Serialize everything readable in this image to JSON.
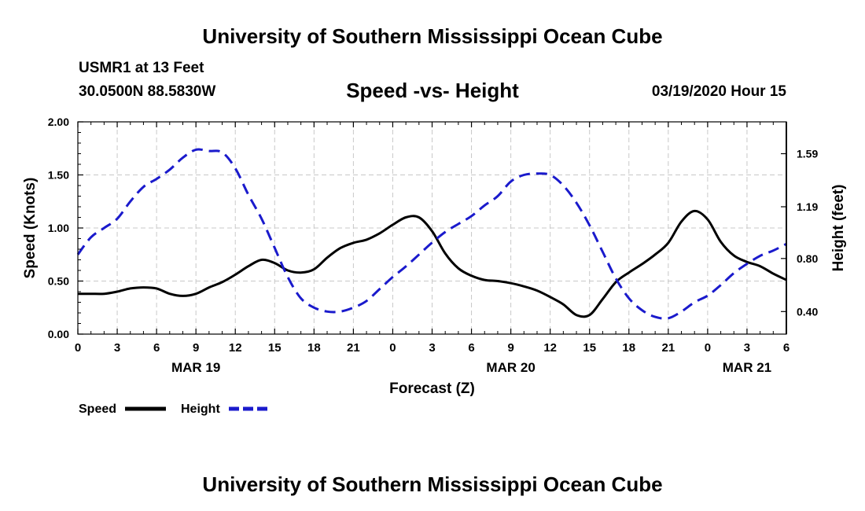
{
  "header": {
    "title": "University of Southern Mississippi Ocean Cube",
    "station": "USMR1 at 13 Feet",
    "coords": "30.0500N 88.5830W",
    "chart_title": "Speed -vs- Height",
    "datetime": "03/19/2020 Hour 15"
  },
  "footer": {
    "title": "University of Southern Mississippi Ocean Cube"
  },
  "legend": {
    "items": [
      {
        "label": "Speed",
        "color": "#000000",
        "dash": false
      },
      {
        "label": "Height",
        "color": "#1a1acc",
        "dash": true
      }
    ]
  },
  "chart_data": {
    "type": "line",
    "title": "Speed -vs- Height",
    "xlabel": "Forecast (Z)",
    "ylabel": "Speed (Knots)",
    "y2label": "Height (feet)",
    "xlim": [
      0,
      54
    ],
    "ylim": [
      0,
      2.0
    ],
    "y2lim": [
      0.23,
      1.83
    ],
    "x_ticks": [
      0,
      3,
      6,
      9,
      12,
      15,
      18,
      21,
      24,
      27,
      30,
      33,
      36,
      39,
      42,
      45,
      48,
      51,
      54
    ],
    "x_tick_labels": [
      "0",
      "3",
      "6",
      "9",
      "12",
      "15",
      "18",
      "21",
      "0",
      "3",
      "6",
      "9",
      "12",
      "15",
      "18",
      "21",
      "0",
      "3",
      "6"
    ],
    "date_labels": [
      {
        "x": 9,
        "label": "MAR 19"
      },
      {
        "x": 33,
        "label": "MAR 20"
      },
      {
        "x": 51,
        "label": "MAR 21"
      }
    ],
    "y_ticks": [
      0,
      0.5,
      1.0,
      1.5,
      2.0
    ],
    "y_tick_labels": [
      "0.00",
      "0.50",
      "1.00",
      "1.50",
      "2.00"
    ],
    "y2_ticks": [
      0.4,
      0.8,
      1.19,
      1.59
    ],
    "y2_tick_labels": [
      "0.40",
      "0.80",
      "1.19",
      "1.59"
    ],
    "grid": true,
    "series": [
      {
        "name": "Speed",
        "axis": "left",
        "color": "#000000",
        "x": [
          0,
          1,
          2,
          3,
          4,
          5,
          6,
          7,
          8,
          9,
          10,
          11,
          12,
          13,
          14,
          15,
          16,
          17,
          18,
          19,
          20,
          21,
          22,
          23,
          24,
          25,
          26,
          27,
          28,
          29,
          30,
          31,
          32,
          33,
          34,
          35,
          36,
          37,
          38,
          39,
          40,
          41,
          42,
          43,
          44,
          45,
          46,
          47,
          48,
          49,
          50,
          51,
          52,
          53,
          54
        ],
        "values": [
          0.38,
          0.38,
          0.38,
          0.4,
          0.43,
          0.44,
          0.43,
          0.38,
          0.36,
          0.38,
          0.44,
          0.49,
          0.56,
          0.64,
          0.7,
          0.67,
          0.6,
          0.58,
          0.61,
          0.72,
          0.81,
          0.86,
          0.89,
          0.95,
          1.03,
          1.1,
          1.1,
          0.97,
          0.76,
          0.62,
          0.55,
          0.51,
          0.5,
          0.48,
          0.45,
          0.41,
          0.35,
          0.28,
          0.18,
          0.18,
          0.33,
          0.49,
          0.58,
          0.66,
          0.75,
          0.86,
          1.06,
          1.16,
          1.08,
          0.87,
          0.74,
          0.68,
          0.64,
          0.57,
          0.51
        ]
      },
      {
        "name": "Height",
        "axis": "right",
        "color": "#1a1acc",
        "x": [
          0,
          1,
          2,
          3,
          4,
          5,
          6,
          7,
          8,
          9,
          10,
          11,
          12,
          13,
          14,
          15,
          16,
          17,
          18,
          19,
          20,
          21,
          22,
          23,
          24,
          25,
          26,
          27,
          28,
          29,
          30,
          31,
          32,
          33,
          34,
          35,
          36,
          37,
          38,
          39,
          40,
          41,
          42,
          43,
          44,
          45,
          46,
          47,
          48,
          49,
          50,
          51,
          52,
          53,
          54
        ],
        "values": [
          0.83,
          0.96,
          1.03,
          1.1,
          1.23,
          1.34,
          1.4,
          1.47,
          1.56,
          1.62,
          1.61,
          1.6,
          1.48,
          1.28,
          1.1,
          0.88,
          0.66,
          0.5,
          0.43,
          0.4,
          0.4,
          0.43,
          0.48,
          0.57,
          0.66,
          0.74,
          0.83,
          0.92,
          1.0,
          1.06,
          1.12,
          1.2,
          1.27,
          1.38,
          1.43,
          1.44,
          1.43,
          1.35,
          1.22,
          1.05,
          0.85,
          0.65,
          0.5,
          0.41,
          0.36,
          0.35,
          0.4,
          0.47,
          0.52,
          0.6,
          0.69,
          0.76,
          0.82,
          0.86,
          0.91
        ]
      }
    ]
  }
}
